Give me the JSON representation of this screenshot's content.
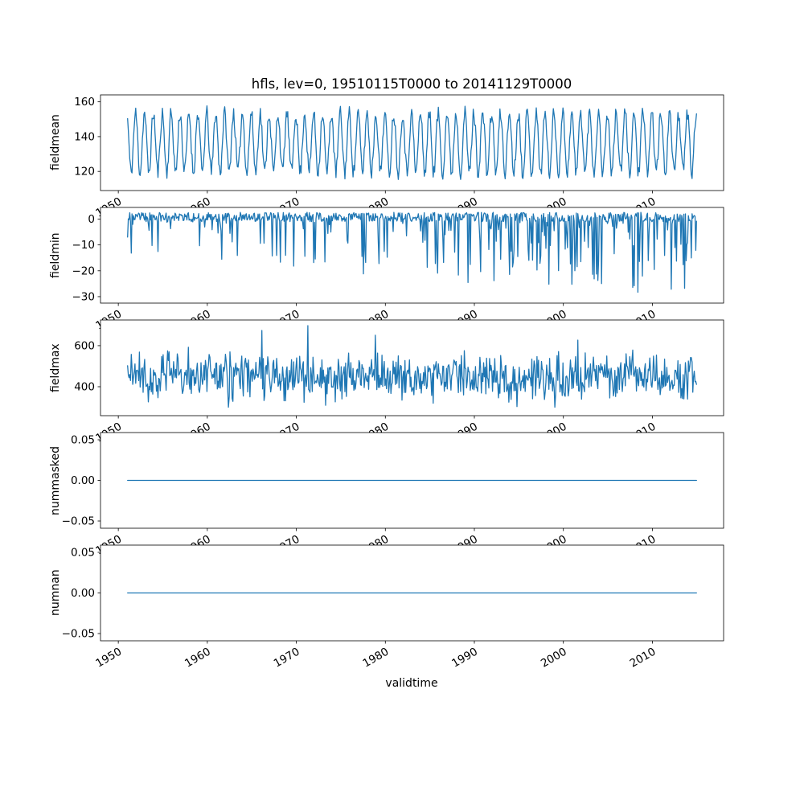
{
  "title": "hfls, lev=0, 19510115T0000 to 20141129T0000",
  "xlabel": "validtime",
  "line_color": "#1f77b4",
  "axis_color": "#000000",
  "x_axis": {
    "lim": [
      1948,
      2018
    ],
    "ticks": [
      1950,
      1960,
      1970,
      1980,
      1990,
      2000,
      2010
    ],
    "tick_labels": [
      "1950",
      "1960",
      "1970",
      "1980",
      "1990",
      "2000",
      "2010"
    ],
    "data_start": 1951.04,
    "data_end": 2014.92,
    "samples_per_year": 12
  },
  "chart_data": [
    {
      "type": "line",
      "name": "fieldmean",
      "ylabel": "fieldmean",
      "ylim": [
        109,
        164
      ],
      "yticks": [
        {
          "value": 120,
          "label": "120"
        },
        {
          "value": 140,
          "label": "140"
        },
        {
          "value": 160,
          "label": "160"
        }
      ],
      "summary": {
        "approx_min": 112,
        "approx_max": 160,
        "approx_mean": 136.5,
        "pattern": "regular annual seasonal oscillation, monthly samples 1951-2014"
      },
      "synth": {
        "kind": "seasonal",
        "base": 136.5,
        "amp": 17,
        "noise": 4.3,
        "seed": 11
      }
    },
    {
      "type": "line",
      "name": "fieldmin",
      "ylabel": "fieldmin",
      "ylim": [
        -32.5,
        4.5
      ],
      "yticks": [
        {
          "value": 0,
          "label": "0"
        },
        {
          "value": -10,
          "label": "−10"
        },
        {
          "value": -20,
          "label": "−20"
        },
        {
          "value": -30,
          "label": "−30"
        }
      ],
      "summary": {
        "approx_baseline": 1,
        "deepest_spike": -30,
        "pattern": "near zero with intermittent negative spikes that deepen and become more frequent over time"
      },
      "synth": {
        "kind": "neg_spikes",
        "seed": 23
      }
    },
    {
      "type": "line",
      "name": "fieldmax",
      "ylabel": "fieldmax",
      "ylim": [
        259,
        725
      ],
      "yticks": [
        {
          "value": 400,
          "label": "400"
        },
        {
          "value": 600,
          "label": "600"
        }
      ],
      "summary": {
        "approx_min": 300,
        "approx_max": 700,
        "approx_mean": 450,
        "pattern": "noisy band mostly 350-550 with occasional peaks near 700"
      },
      "synth": {
        "kind": "noisy",
        "base": 450,
        "seed": 37
      }
    },
    {
      "type": "line",
      "name": "nummasked",
      "ylabel": "nummasked",
      "ylim": [
        -0.0589,
        0.0589
      ],
      "yticks": [
        {
          "value": 0.05,
          "label": "0.05"
        },
        {
          "value": 0.0,
          "label": "0.00"
        },
        {
          "value": -0.05,
          "label": "−0.05"
        }
      ],
      "summary": {
        "constant_value": 0,
        "pattern": "flat line at 0.00"
      },
      "synth": {
        "kind": "flat",
        "value": 0,
        "seed": 41
      }
    },
    {
      "type": "line",
      "name": "numnan",
      "ylabel": "numnan",
      "ylim": [
        -0.0589,
        0.0589
      ],
      "yticks": [
        {
          "value": 0.05,
          "label": "0.05"
        },
        {
          "value": 0.0,
          "label": "0.00"
        },
        {
          "value": -0.05,
          "label": "−0.05"
        }
      ],
      "summary": {
        "constant_value": 0,
        "pattern": "flat line at 0.00"
      },
      "synth": {
        "kind": "flat",
        "value": 0,
        "seed": 43
      }
    }
  ]
}
